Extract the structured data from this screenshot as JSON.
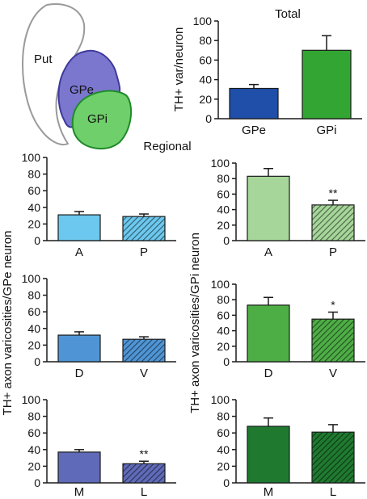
{
  "colors": {
    "axis": "#1a1a1a",
    "outline_put": "#9a9a9a",
    "gpe_light": "#7b77cf",
    "gpe_dark": "#3d3a9a",
    "gpi_light": "#6fcf6a",
    "gpi_dark": "#1f8a2a"
  },
  "diagram": {
    "labels": {
      "put": "Put",
      "gpe": "GPe",
      "gpi": "GPi"
    }
  },
  "headers": {
    "total": "Total",
    "regional": "Regional",
    "ylabel_total": "TH+ var/neuron",
    "ylabel_gpe": "TH+ axon varicosities/GPe neuron",
    "ylabel_gpi": "TH+ axon varicosities/GPi neuron"
  },
  "chart_data": [
    {
      "id": "total",
      "type": "bar",
      "title": "Total",
      "ylabel": "TH+ var/neuron",
      "categories": [
        "GPe",
        "GPi"
      ],
      "values": [
        31,
        70
      ],
      "errors": [
        4,
        15
      ],
      "colors": [
        "#1f4fa8",
        "#33a532"
      ],
      "hatched": [
        false,
        false
      ],
      "significance": [
        "",
        ""
      ],
      "ylim": [
        0,
        100
      ],
      "yticks": [
        0,
        20,
        40,
        60,
        80,
        100
      ]
    },
    {
      "id": "gpe-ap",
      "type": "bar",
      "categories": [
        "A",
        "P"
      ],
      "values": [
        31,
        29
      ],
      "errors": [
        4,
        3
      ],
      "colors": [
        "#6cc8ee",
        "#6cc8ee"
      ],
      "hatched": [
        false,
        true
      ],
      "significance": [
        "",
        ""
      ],
      "ylim": [
        0,
        100
      ],
      "yticks": [
        0,
        20,
        40,
        60,
        80,
        100
      ]
    },
    {
      "id": "gpi-ap",
      "type": "bar",
      "categories": [
        "A",
        "P"
      ],
      "values": [
        83,
        46
      ],
      "errors": [
        10,
        6
      ],
      "colors": [
        "#a6d69a",
        "#a6d69a"
      ],
      "hatched": [
        false,
        true
      ],
      "significance": [
        "",
        "**"
      ],
      "ylim": [
        0,
        100
      ],
      "yticks": [
        0,
        20,
        40,
        60,
        80,
        100
      ]
    },
    {
      "id": "gpe-dv",
      "type": "bar",
      "categories": [
        "D",
        "V"
      ],
      "values": [
        32,
        27
      ],
      "errors": [
        4,
        3
      ],
      "colors": [
        "#4f95d6",
        "#4f95d6"
      ],
      "hatched": [
        false,
        true
      ],
      "significance": [
        "",
        ""
      ],
      "ylim": [
        0,
        100
      ],
      "yticks": [
        0,
        20,
        40,
        60,
        80,
        100
      ]
    },
    {
      "id": "gpi-dv",
      "type": "bar",
      "categories": [
        "D",
        "V"
      ],
      "values": [
        73,
        55
      ],
      "errors": [
        10,
        9
      ],
      "colors": [
        "#4eae46",
        "#4eae46"
      ],
      "hatched": [
        false,
        true
      ],
      "significance": [
        "",
        "*"
      ],
      "ylim": [
        0,
        100
      ],
      "yticks": [
        0,
        20,
        40,
        60,
        80,
        100
      ]
    },
    {
      "id": "gpe-ml",
      "type": "bar",
      "categories": [
        "M",
        "L"
      ],
      "values": [
        37,
        23
      ],
      "errors": [
        3,
        3
      ],
      "colors": [
        "#5f6ab8",
        "#5f6ab8"
      ],
      "hatched": [
        false,
        true
      ],
      "significance": [
        "",
        "**"
      ],
      "ylim": [
        0,
        100
      ],
      "yticks": [
        0,
        20,
        40,
        60,
        80,
        100
      ]
    },
    {
      "id": "gpi-ml",
      "type": "bar",
      "categories": [
        "M",
        "L"
      ],
      "values": [
        68,
        61
      ],
      "errors": [
        10,
        9
      ],
      "colors": [
        "#1f7a30",
        "#1f7a30"
      ],
      "hatched": [
        false,
        true
      ],
      "significance": [
        "",
        ""
      ],
      "ylim": [
        0,
        100
      ],
      "yticks": [
        0,
        20,
        40,
        60,
        80,
        100
      ]
    }
  ]
}
